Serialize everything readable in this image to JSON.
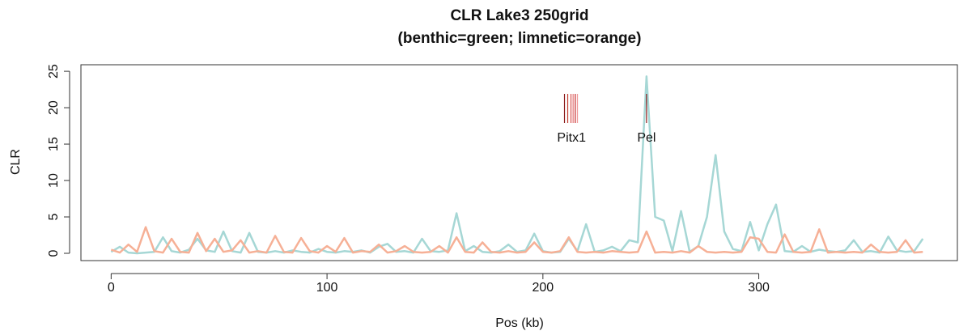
{
  "chart_data": {
    "type": "line",
    "title": "CLR Lake3 250grid",
    "subtitle": "(benthic=green; limnetic=orange)",
    "x_label": "Pos (kb)",
    "y_label": "CLR",
    "xlim": [
      -14,
      392
    ],
    "ylim": [
      -1,
      25.9
    ],
    "xticks": [
      0,
      100,
      200,
      300
    ],
    "yticks": [
      0,
      5,
      10,
      15,
      20,
      25
    ],
    "x": [
      0,
      4,
      8,
      12,
      16,
      20,
      24,
      28,
      32,
      36,
      40,
      44,
      48,
      52,
      56,
      60,
      64,
      68,
      72,
      76,
      80,
      84,
      88,
      92,
      96,
      100,
      104,
      108,
      112,
      116,
      120,
      124,
      128,
      132,
      136,
      140,
      144,
      148,
      152,
      156,
      160,
      164,
      168,
      172,
      176,
      180,
      184,
      188,
      192,
      196,
      200,
      204,
      208,
      212,
      216,
      220,
      224,
      228,
      232,
      236,
      240,
      244,
      248,
      252,
      256,
      260,
      264,
      268,
      272,
      276,
      280,
      284,
      288,
      292,
      296,
      300,
      304,
      308,
      312,
      316,
      320,
      324,
      328,
      332,
      336,
      340,
      344,
      348,
      352,
      356,
      360,
      364,
      368,
      372,
      376
    ],
    "series": [
      {
        "name": "benthic",
        "color": "#a6d7d5",
        "values": [
          0.2,
          0.9,
          0.1,
          0.0,
          0.1,
          0.2,
          2.2,
          0.3,
          0.1,
          0.5,
          2.0,
          0.4,
          0.2,
          3.0,
          0.3,
          0.1,
          2.8,
          0.2,
          0.1,
          0.3,
          0.1,
          0.4,
          0.2,
          0.1,
          0.6,
          0.2,
          0.1,
          0.3,
          0.2,
          0.4,
          0.1,
          0.9,
          1.3,
          0.2,
          0.3,
          0.1,
          2.0,
          0.3,
          0.2,
          0.4,
          5.5,
          0.3,
          1.0,
          0.2,
          0.1,
          0.3,
          1.2,
          0.2,
          0.4,
          2.7,
          0.3,
          0.1,
          0.2,
          2.0,
          0.3,
          4.0,
          0.2,
          0.4,
          0.9,
          0.3,
          1.8,
          1.5,
          24.3,
          5.0,
          4.5,
          0.3,
          5.8,
          0.2,
          1.0,
          5.0,
          13.5,
          3.0,
          0.6,
          0.3,
          4.3,
          0.4,
          4.0,
          6.7,
          0.3,
          0.2,
          1.0,
          0.2,
          0.5,
          0.3,
          0.2,
          0.4,
          1.8,
          0.2,
          0.3,
          0.1,
          2.3,
          0.4,
          0.2,
          0.3,
          2.0
        ]
      },
      {
        "name": "limnetic",
        "color": "#f6b096",
        "values": [
          0.5,
          0.1,
          1.2,
          0.2,
          3.6,
          0.3,
          0.1,
          2.0,
          0.2,
          0.1,
          2.8,
          0.3,
          2.0,
          0.2,
          0.4,
          1.8,
          0.1,
          0.3,
          0.1,
          2.4,
          0.2,
          0.1,
          2.1,
          0.3,
          0.1,
          1.0,
          0.2,
          2.1,
          0.1,
          0.3,
          0.2,
          1.2,
          0.1,
          0.3,
          1.0,
          0.2,
          0.1,
          0.2,
          1.0,
          0.1,
          2.2,
          0.2,
          0.1,
          1.5,
          0.2,
          0.1,
          0.3,
          0.1,
          0.2,
          1.5,
          0.2,
          0.1,
          0.3,
          2.2,
          0.2,
          0.1,
          0.2,
          0.1,
          0.3,
          0.2,
          0.1,
          0.2,
          3.0,
          0.1,
          0.2,
          0.1,
          0.3,
          0.1,
          1.0,
          0.2,
          0.1,
          0.2,
          0.1,
          0.2,
          2.2,
          2.0,
          0.2,
          0.1,
          2.6,
          0.2,
          0.1,
          0.2,
          3.3,
          0.1,
          0.2,
          0.1,
          0.2,
          0.1,
          1.2,
          0.2,
          0.1,
          0.2,
          1.8,
          0.1,
          0.2
        ]
      }
    ],
    "annotations": [
      {
        "text": "Pitx1",
        "x": [
          210,
          211.5,
          213,
          214,
          215,
          216
        ]
      },
      {
        "text": "Pel",
        "x": [
          248
        ]
      }
    ]
  }
}
